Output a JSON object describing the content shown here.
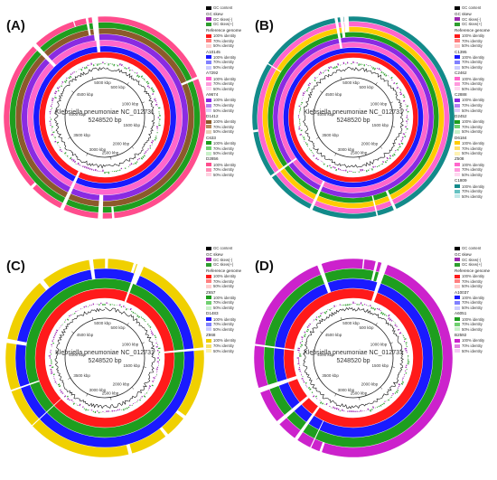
{
  "panels": [
    {
      "label": "(A)",
      "center_title": "Klebsiella pneumoniae NC_012731",
      "center_size": "5248520 bp",
      "ticks": [
        "500 kbp",
        "1000 kbp",
        "1500 kbp",
        "2000 kbp",
        "2500 kbp",
        "3000 kbp",
        "3500 kbp",
        "4000 kbp",
        "4500 kbp",
        "5000 kbp"
      ],
      "legend": [
        {
          "type": "row",
          "text": "GC content",
          "color": "#000000"
        },
        {
          "type": "head",
          "text": "GC skew"
        },
        {
          "type": "row",
          "text": "GC skew(-)",
          "color": "#9c27b0"
        },
        {
          "type": "row",
          "text": "GC skew(+)",
          "color": "#2e9e2e"
        },
        {
          "type": "head",
          "text": "Reference genome"
        },
        {
          "type": "row",
          "text": "100% identity",
          "color": "#ff1a1a"
        },
        {
          "type": "row",
          "text": "70% identity",
          "color": "#ff8080"
        },
        {
          "type": "row",
          "text": "50% identity",
          "color": "#ffcccc"
        },
        {
          "type": "head",
          "text": "A10145"
        },
        {
          "type": "row",
          "text": "100% identity",
          "color": "#1a1aff"
        },
        {
          "type": "row",
          "text": "70% identity",
          "color": "#8080ff"
        },
        {
          "type": "row",
          "text": "50% identity",
          "color": "#ccccff"
        },
        {
          "type": "head",
          "text": "A7292"
        },
        {
          "type": "row",
          "text": "100% identity",
          "color": "#ff66cc"
        },
        {
          "type": "row",
          "text": "70% identity",
          "color": "#ff99dd"
        },
        {
          "type": "row",
          "text": "50% identity",
          "color": "#ffd6f0"
        },
        {
          "type": "head",
          "text": "A9674"
        },
        {
          "type": "row",
          "text": "100% identity",
          "color": "#8a2be2"
        },
        {
          "type": "row",
          "text": "70% identity",
          "color": "#b580f0"
        },
        {
          "type": "row",
          "text": "50% identity",
          "color": "#e0ccfa"
        },
        {
          "type": "head",
          "text": "D1412"
        },
        {
          "type": "row",
          "text": "100% identity",
          "color": "#8b5a2b"
        },
        {
          "type": "row",
          "text": "70% identity",
          "color": "#b88a5e"
        },
        {
          "type": "row",
          "text": "50% identity",
          "color": "#e6d0b8"
        },
        {
          "type": "head",
          "text": "C633"
        },
        {
          "type": "row",
          "text": "100% identity",
          "color": "#1e9e1e"
        },
        {
          "type": "row",
          "text": "70% identity",
          "color": "#70d070"
        },
        {
          "type": "row",
          "text": "50% identity",
          "color": "#c8f0c8"
        },
        {
          "type": "head",
          "text": "D2856"
        },
        {
          "type": "row",
          "text": "100% identity",
          "color": "#ff4d8d"
        },
        {
          "type": "row",
          "text": "70% identity",
          "color": "#ff8db5"
        },
        {
          "type": "row",
          "text": "50% identity",
          "color": "#ffd0e0"
        }
      ],
      "rings": [
        "#ff1a1a",
        "#1a1aff",
        "#ff66cc",
        "#8a2be2",
        "#8b5a2b",
        "#1e9e1e",
        "#ff4d8d"
      ]
    },
    {
      "label": "(B)",
      "center_title": "Klebsiella pneumoniae NC_012731",
      "center_size": "5248520 bp",
      "ticks": [
        "500 kbp",
        "1000 kbp",
        "1500 kbp",
        "2000 kbp",
        "2500 kbp",
        "3000 kbp",
        "3500 kbp",
        "4000 kbp",
        "4500 kbp",
        "5000 kbp"
      ],
      "legend": [
        {
          "type": "row",
          "text": "GC content",
          "color": "#000000"
        },
        {
          "type": "head",
          "text": "GC skew"
        },
        {
          "type": "row",
          "text": "GC skew(-)",
          "color": "#9c27b0"
        },
        {
          "type": "row",
          "text": "GC skew(+)",
          "color": "#2e9e2e"
        },
        {
          "type": "head",
          "text": "Reference genome"
        },
        {
          "type": "row",
          "text": "100% identity",
          "color": "#ff1a1a"
        },
        {
          "type": "row",
          "text": "70% identity",
          "color": "#ff8080"
        },
        {
          "type": "row",
          "text": "50% identity",
          "color": "#ffcccc"
        },
        {
          "type": "head",
          "text": "C1395"
        },
        {
          "type": "row",
          "text": "100% identity",
          "color": "#1a1aff"
        },
        {
          "type": "row",
          "text": "70% identity",
          "color": "#8080ff"
        },
        {
          "type": "row",
          "text": "50% identity",
          "color": "#ccccff"
        },
        {
          "type": "head",
          "text": "C2462"
        },
        {
          "type": "row",
          "text": "100% identity",
          "color": "#ff66cc"
        },
        {
          "type": "row",
          "text": "70% identity",
          "color": "#ff99dd"
        },
        {
          "type": "row",
          "text": "50% identity",
          "color": "#ffd6f0"
        },
        {
          "type": "head",
          "text": "C2888"
        },
        {
          "type": "row",
          "text": "100% identity",
          "color": "#8a2be2"
        },
        {
          "type": "row",
          "text": "70% identity",
          "color": "#b580f0"
        },
        {
          "type": "row",
          "text": "50% identity",
          "color": "#e0ccfa"
        },
        {
          "type": "head",
          "text": "D2452"
        },
        {
          "type": "row",
          "text": "100% identity",
          "color": "#1e9e1e"
        },
        {
          "type": "row",
          "text": "70% identity",
          "color": "#70d070"
        },
        {
          "type": "row",
          "text": "50% identity",
          "color": "#c8f0c8"
        },
        {
          "type": "head",
          "text": "D6184"
        },
        {
          "type": "row",
          "text": "100% identity",
          "color": "#ffcc00"
        },
        {
          "type": "row",
          "text": "70% identity",
          "color": "#ffe066"
        },
        {
          "type": "row",
          "text": "50% identity",
          "color": "#fff2b3"
        },
        {
          "type": "head",
          "text": "Z508"
        },
        {
          "type": "row",
          "text": "100% identity",
          "color": "#ff66cc"
        },
        {
          "type": "row",
          "text": "70% identity",
          "color": "#ff99dd"
        },
        {
          "type": "row",
          "text": "50% identity",
          "color": "#ffd6f0"
        },
        {
          "type": "head",
          "text": "C1809"
        },
        {
          "type": "row",
          "text": "100% identity",
          "color": "#138a8a"
        },
        {
          "type": "row",
          "text": "70% identity",
          "color": "#66c2c2"
        },
        {
          "type": "row",
          "text": "50% identity",
          "color": "#c2e8e8"
        }
      ],
      "rings": [
        "#ff1a1a",
        "#1a1aff",
        "#ff66cc",
        "#8a2be2",
        "#1e9e1e",
        "#ffcc00",
        "#ff66cc",
        "#138a8a"
      ]
    },
    {
      "label": "(C)",
      "center_title": "Klebsiella pneumoniae NC_012731",
      "center_size": "5248520 bp",
      "ticks": [
        "500 kbp",
        "1000 kbp",
        "1500 kbp",
        "2000 kbp",
        "2500 kbp",
        "3000 kbp",
        "3500 kbp",
        "4000 kbp",
        "4500 kbp",
        "5000 kbp"
      ],
      "legend": [
        {
          "type": "row",
          "text": "GC content",
          "color": "#000000"
        },
        {
          "type": "head",
          "text": "GC skew"
        },
        {
          "type": "row",
          "text": "GC skew(-)",
          "color": "#9c27b0"
        },
        {
          "type": "row",
          "text": "GC skew(+)",
          "color": "#2e9e2e"
        },
        {
          "type": "head",
          "text": "Reference genome"
        },
        {
          "type": "row",
          "text": "100% identity",
          "color": "#ff1a1a"
        },
        {
          "type": "row",
          "text": "70% identity",
          "color": "#ff8080"
        },
        {
          "type": "row",
          "text": "50% identity",
          "color": "#ffcccc"
        },
        {
          "type": "head",
          "text": "Z657"
        },
        {
          "type": "row",
          "text": "100% identity",
          "color": "#1e9e1e"
        },
        {
          "type": "row",
          "text": "70% identity",
          "color": "#70d070"
        },
        {
          "type": "row",
          "text": "50% identity",
          "color": "#c8f0c8"
        },
        {
          "type": "head",
          "text": "D1483"
        },
        {
          "type": "row",
          "text": "100% identity",
          "color": "#1a1aff"
        },
        {
          "type": "row",
          "text": "70% identity",
          "color": "#8080ff"
        },
        {
          "type": "row",
          "text": "50% identity",
          "color": "#ccccff"
        },
        {
          "type": "head",
          "text": "Z868"
        },
        {
          "type": "row",
          "text": "100% identity",
          "color": "#f0d000"
        },
        {
          "type": "row",
          "text": "70% identity",
          "color": "#f5e066"
        },
        {
          "type": "row",
          "text": "50% identity",
          "color": "#fbf2b3"
        }
      ],
      "rings": [
        "#ff1a1a",
        "#1e9e1e",
        "#1a1aff",
        "#f0d000"
      ]
    },
    {
      "label": "(D)",
      "center_title": "Klebsiella pneumoniae NC_012731",
      "center_size": "5248520 bp",
      "ticks": [
        "500 kbp",
        "1000 kbp",
        "1500 kbp",
        "2000 kbp",
        "2500 kbp",
        "3000 kbp",
        "3500 kbp",
        "4000 kbp",
        "4500 kbp",
        "5000 kbp"
      ],
      "legend": [
        {
          "type": "row",
          "text": "GC content",
          "color": "#000000"
        },
        {
          "type": "head",
          "text": "GC skew"
        },
        {
          "type": "row",
          "text": "GC skew(-)",
          "color": "#9c27b0"
        },
        {
          "type": "row",
          "text": "GC skew(+)",
          "color": "#2e9e2e"
        },
        {
          "type": "head",
          "text": "Reference genome"
        },
        {
          "type": "row",
          "text": "100% identity",
          "color": "#ff1a1a"
        },
        {
          "type": "row",
          "text": "70% identity",
          "color": "#ff8080"
        },
        {
          "type": "row",
          "text": "50% identity",
          "color": "#ffcccc"
        },
        {
          "type": "head",
          "text": "A10037"
        },
        {
          "type": "row",
          "text": "100% identity",
          "color": "#1a1aff"
        },
        {
          "type": "row",
          "text": "70% identity",
          "color": "#8080ff"
        },
        {
          "type": "row",
          "text": "50% identity",
          "color": "#ccccff"
        },
        {
          "type": "head",
          "text": "A6051"
        },
        {
          "type": "row",
          "text": "100% identity",
          "color": "#1e9e1e"
        },
        {
          "type": "row",
          "text": "70% identity",
          "color": "#70d070"
        },
        {
          "type": "row",
          "text": "50% identity",
          "color": "#c8f0c8"
        },
        {
          "type": "head",
          "text": "B2592"
        },
        {
          "type": "row",
          "text": "100% identity",
          "color": "#cc22cc"
        },
        {
          "type": "row",
          "text": "70% identity",
          "color": "#e080e0"
        },
        {
          "type": "row",
          "text": "50% identity",
          "color": "#f5ccf5"
        }
      ],
      "rings": [
        "#ff1a1a",
        "#1a1aff",
        "#1e9e1e",
        "#cc22cc"
      ]
    }
  ]
}
